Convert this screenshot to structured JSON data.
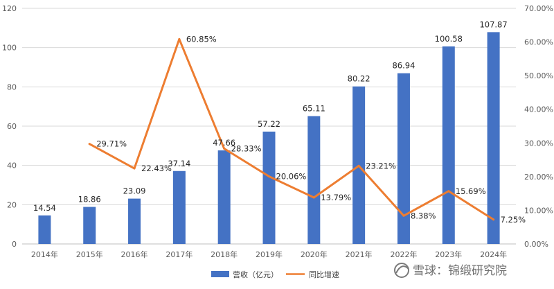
{
  "chart_data": {
    "type": "bar",
    "categories": [
      "2014年",
      "2015年",
      "2016年",
      "2017年",
      "2018年",
      "2019年",
      "2020年",
      "2021年",
      "2022年",
      "2023年",
      "2024年"
    ],
    "series": [
      {
        "name": "营收（亿元）",
        "type": "bar",
        "axis": "left",
        "values": [
          14.54,
          18.86,
          23.09,
          37.14,
          47.66,
          57.22,
          65.11,
          80.22,
          86.94,
          100.58,
          107.87
        ],
        "labels": [
          "14.54",
          "18.86",
          "23.09",
          "37.14",
          "47.66",
          "57.22",
          "65.11",
          "80.22",
          "86.94",
          "100.58",
          "107.87"
        ],
        "color": "#4472C4"
      },
      {
        "name": "同比增速",
        "type": "line",
        "axis": "right",
        "values": [
          null,
          29.71,
          22.43,
          60.85,
          28.33,
          20.06,
          13.79,
          23.21,
          8.38,
          15.69,
          7.25
        ],
        "labels": [
          null,
          "29.71%",
          "22.43%",
          "60.85%",
          "28.33%",
          "20.06%",
          "13.79%",
          "23.21%",
          "8.38%",
          "15.69%",
          "7.25%"
        ],
        "color": "#ED7D31"
      }
    ],
    "y_left": {
      "min": 0,
      "max": 120,
      "ticks": [
        "0",
        "20",
        "40",
        "60",
        "80",
        "100",
        "120"
      ]
    },
    "y_right": {
      "min": 0,
      "max": 70,
      "ticks": [
        "0.00%",
        "10.00%",
        "20.00%",
        "30.00%",
        "40.00%",
        "50.00%",
        "60.00%",
        "70.00%"
      ]
    },
    "grid": true,
    "legend": "bottom"
  },
  "watermark": {
    "text": "雪球：锦缎研究院"
  }
}
